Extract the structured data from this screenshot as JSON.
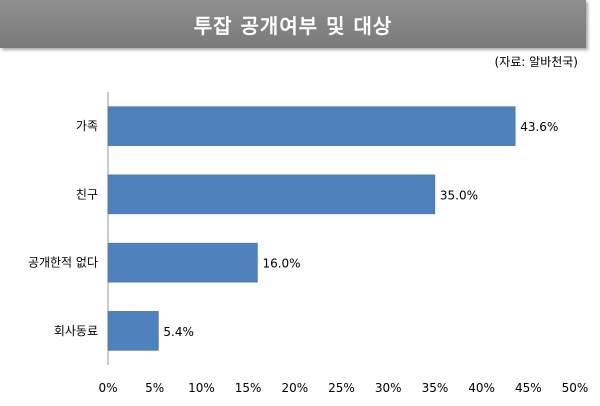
{
  "header": {
    "title": "투잡 공개여부 및 대상",
    "source": "(자료: 알바천국)"
  },
  "colors": {
    "bar": "#4f81bd",
    "bar_border": "#3a66a0",
    "axis": "#9a9a9a"
  },
  "chart_data": {
    "type": "bar",
    "orientation": "horizontal",
    "categories": [
      "가족",
      "친구",
      "공개한적 없다",
      "회사동료"
    ],
    "values": [
      43.6,
      35.0,
      16.0,
      5.4
    ],
    "value_labels": [
      "43.6%",
      "35.0%",
      "16.0%",
      "5.4%"
    ],
    "xlim": [
      0,
      50
    ],
    "xticks": [
      0,
      5,
      10,
      15,
      20,
      25,
      30,
      35,
      40,
      45,
      50
    ],
    "xtick_labels": [
      "0%",
      "5%",
      "10%",
      "15%",
      "20%",
      "25%",
      "30%",
      "35%",
      "40%",
      "45%",
      "50%"
    ],
    "grid": false,
    "legend": "none"
  }
}
